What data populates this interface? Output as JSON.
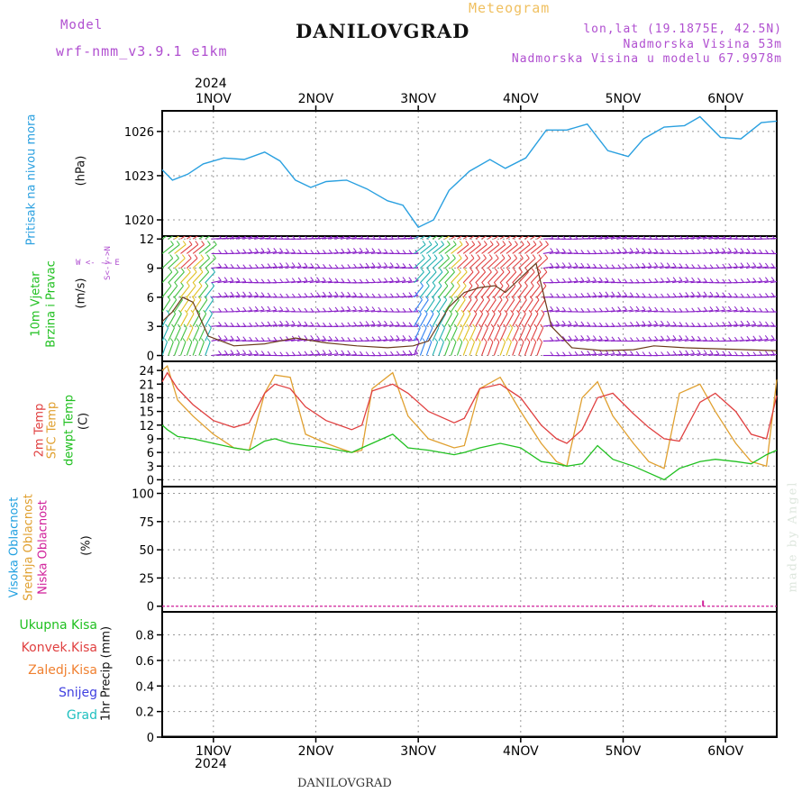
{
  "header": {
    "model_label": "Model",
    "model_name": "wrf-nmm_v3.9.1 e1km",
    "location": "DANILOVGRAD",
    "meteogram_label": "Meteogram",
    "coords": "lon,lat (19.1875E, 42.5N)",
    "altitude": "Nadmorska Visina 53m",
    "model_altitude": "Nadmorska Visina u modelu 67.9978m"
  },
  "footer": {
    "location": "DANILOVGRAD",
    "watermark": "made by Angel"
  },
  "axis_top": {
    "year": "2024",
    "days": [
      "1NOV",
      "2NOV",
      "3NOV",
      "4NOV",
      "5NOV",
      "6NOV"
    ]
  },
  "axis_bottom": {
    "year": "2024",
    "days": [
      "1NOV",
      "2NOV",
      "3NOV",
      "4NOV",
      "5NOV",
      "6NOV"
    ]
  },
  "panels": {
    "pressure": {
      "title": "Pritisak na nivou mora",
      "unit": "(hPa)"
    },
    "wind": {
      "title1": "10m Vjetar",
      "title2": "Brzina i Pravac",
      "unit": "(m/s)",
      "compass": "W <- -> E",
      "compass_ns": "S<-|->N"
    },
    "temp": {
      "l1": "2m Temp",
      "l2": "SFC Temp",
      "l3": "dewpt Temp",
      "unit": "(C)"
    },
    "cloud": {
      "l1": "Visoka Oblacnost",
      "l2": "Srednja Oblacnost",
      "l3": "Niska Oblacnost",
      "unit": "(%)"
    },
    "precip": {
      "unit": "1hr Precip (mm)",
      "legend": [
        "Ukupna Kisa",
        "Konvek.Kisa",
        "Zaledj.Kisa",
        "Snijeg",
        "Grad"
      ]
    }
  },
  "colors": {
    "pressure": "#2aa0e0",
    "wind_speed": "#6b3a1a",
    "temp2m": "#e04040",
    "sfc": "#e0a030",
    "dew": "#20c020",
    "high_cloud": "#20a0e0",
    "mid_cloud": "#e0a030",
    "low_cloud": "#d0209a",
    "rain": "#20c020",
    "conv": "#e04040",
    "frz": "#f08030",
    "snow": "#4040e0",
    "grad": "#20c0c0"
  },
  "chart_data": [
    {
      "type": "line",
      "title": "Pritisak na nivou mora",
      "ylabel": "(hPa)",
      "ylim": [
        1018.9,
        1027.4
      ],
      "yticks": [
        1020,
        1023,
        1026
      ],
      "x": [
        0.0,
        0.1,
        0.25,
        0.4,
        0.6,
        0.8,
        1.0,
        1.15,
        1.3,
        1.45,
        1.6,
        1.8,
        2.0,
        2.2,
        2.35,
        2.5,
        2.65,
        2.8,
        3.0,
        3.2,
        3.35,
        3.55,
        3.75,
        3.95,
        4.15,
        4.35,
        4.55,
        4.7,
        4.9,
        5.1,
        5.25,
        5.45,
        5.65,
        5.85,
        6.0
      ],
      "series": [
        {
          "values": [
            1023.4,
            1022.7,
            1023.1,
            1023.8,
            1024.2,
            1024.1,
            1024.6,
            1024.0,
            1022.7,
            1022.2,
            1022.6,
            1022.7,
            1022.1,
            1021.3,
            1021.0,
            1019.5,
            1020.0,
            1022.0,
            1023.3,
            1024.1,
            1023.5,
            1024.2,
            1026.1,
            1026.1,
            1026.5,
            1024.7,
            1024.3,
            1025.5,
            1026.3,
            1026.4,
            1027.0,
            1025.6,
            1025.5,
            1026.6,
            1026.7
          ]
        }
      ]
    },
    {
      "type": "line",
      "title": "10m Vjetar Brzina i Pravac",
      "ylabel": "(m/s)",
      "ylim": [
        -0.6,
        12.3
      ],
      "yticks": [
        0,
        3,
        6,
        9,
        12
      ],
      "x": [
        0.0,
        0.1,
        0.2,
        0.3,
        0.45,
        0.7,
        1.0,
        1.3,
        1.6,
        1.9,
        2.2,
        2.45,
        2.6,
        2.8,
        2.95,
        3.1,
        3.25,
        3.35,
        3.5,
        3.65,
        3.8,
        4.0,
        4.3,
        4.6,
        4.8,
        5.1,
        5.4,
        5.7,
        6.0
      ],
      "series": [
        {
          "name": "speed",
          "values": [
            3.5,
            4.5,
            6.0,
            5.5,
            2.0,
            1.0,
            1.2,
            1.8,
            1.3,
            1.0,
            0.8,
            1.0,
            1.5,
            5.0,
            6.5,
            7.0,
            7.2,
            6.5,
            8.0,
            9.5,
            3.0,
            0.8,
            0.5,
            0.6,
            1.0,
            0.8,
            0.7,
            0.6,
            0.5
          ]
        }
      ]
    },
    {
      "type": "line",
      "title": "2m Temp / SFC Temp / dewpt Temp",
      "ylabel": "(C)",
      "ylim": [
        -1.5,
        26
      ],
      "yticks": [
        0,
        3,
        6,
        9,
        12,
        15,
        18,
        21,
        24
      ],
      "x": [
        0.0,
        0.05,
        0.15,
        0.3,
        0.5,
        0.7,
        0.85,
        1.0,
        1.1,
        1.25,
        1.4,
        1.6,
        1.85,
        1.95,
        2.05,
        2.25,
        2.4,
        2.6,
        2.85,
        2.95,
        3.1,
        3.3,
        3.5,
        3.7,
        3.85,
        3.95,
        4.1,
        4.25,
        4.4,
        4.6,
        4.75,
        4.9,
        5.05,
        5.25,
        5.4,
        5.6,
        5.75,
        5.9,
        6.0
      ],
      "series": [
        {
          "name": "2m Temp",
          "values": [
            21.5,
            23.5,
            20.0,
            16.5,
            13.0,
            11.5,
            12.5,
            19.0,
            21.0,
            20.0,
            16.0,
            13.0,
            11.0,
            12.0,
            19.5,
            21.0,
            19.0,
            15.0,
            12.5,
            13.5,
            20.0,
            21.0,
            18.0,
            12.0,
            9.0,
            8.0,
            11.0,
            18.0,
            19.0,
            14.5,
            11.5,
            9.0,
            8.5,
            17.0,
            19.0,
            15.0,
            10.0,
            9.0,
            18.5
          ]
        },
        {
          "name": "SFC Temp",
          "values": [
            24.0,
            25.0,
            17.5,
            14.0,
            10.0,
            7.0,
            6.5,
            19.0,
            23.0,
            22.5,
            10.0,
            8.0,
            6.0,
            6.5,
            20.0,
            23.5,
            14.0,
            9.0,
            7.0,
            7.5,
            20.0,
            22.5,
            15.0,
            8.0,
            4.0,
            3.0,
            18.0,
            21.5,
            14.0,
            8.0,
            4.0,
            2.5,
            19.0,
            21.0,
            15.0,
            8.0,
            4.0,
            3.0,
            22.0
          ]
        },
        {
          "name": "dewpt Temp",
          "values": [
            12.0,
            11.0,
            9.5,
            9.0,
            8.0,
            7.0,
            6.5,
            8.5,
            9.0,
            8.0,
            7.5,
            7.0,
            6.0,
            7.0,
            8.0,
            10.0,
            7.0,
            6.5,
            5.5,
            6.0,
            7.0,
            8.0,
            7.0,
            4.0,
            3.5,
            3.0,
            3.5,
            7.5,
            4.5,
            3.0,
            1.5,
            0.0,
            2.5,
            4.0,
            4.5,
            4.0,
            3.5,
            5.5,
            6.5
          ]
        }
      ]
    },
    {
      "type": "bar",
      "title": "Visoka / Srednja / Niska Oblacnost",
      "ylabel": "(%)",
      "ylim": [
        -5,
        106
      ],
      "yticks": [
        0,
        25,
        50,
        75,
        100
      ],
      "x": [
        4.78,
        5.28
      ],
      "series": [
        {
          "name": "Niska Oblacnost",
          "values": [
            1,
            5
          ]
        }
      ]
    },
    {
      "type": "bar",
      "title": "1hr Precip",
      "ylabel": "1hr Precip (mm)",
      "ylim": [
        0,
        0.98
      ],
      "yticks": [
        0,
        0.2,
        0.4,
        0.6,
        0.8
      ],
      "series": [
        {
          "name": "Ukupna Kisa",
          "values": []
        }
      ]
    }
  ]
}
